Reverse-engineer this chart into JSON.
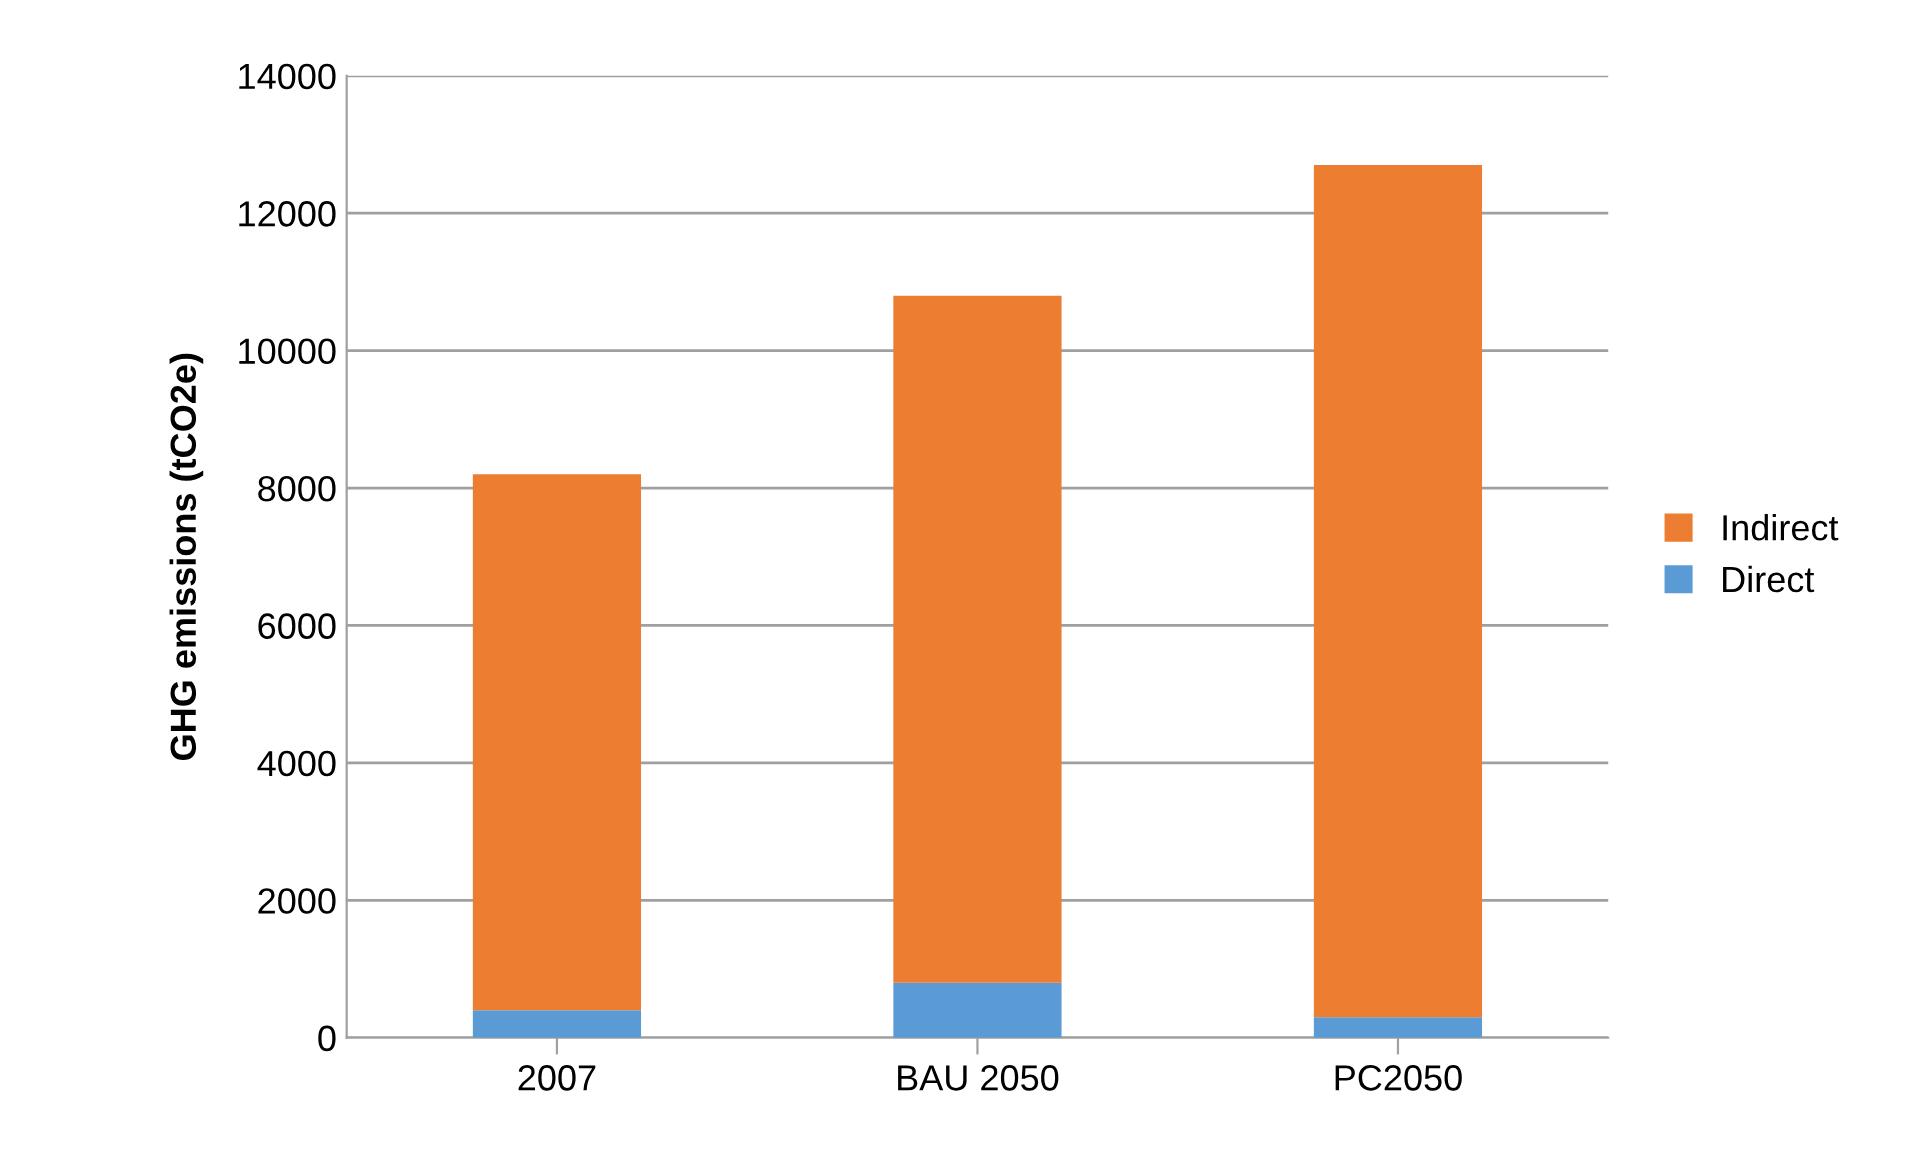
{
  "chart_data": {
    "type": "bar",
    "stacked": true,
    "ylabel": "GHG emissions (tCO2e)",
    "categories": [
      "2007",
      "BAU 2050",
      "PC2050"
    ],
    "series": [
      {
        "name": "Direct",
        "color": "#5b9bd5",
        "values": [
          400,
          800,
          300
        ]
      },
      {
        "name": "Indirect",
        "color": "#ed7d31",
        "values": [
          7800,
          10000,
          12400
        ]
      }
    ],
    "ylim": [
      0,
      14000
    ],
    "yticks": [
      0,
      2000,
      4000,
      6000,
      8000,
      10000,
      12000,
      14000
    ],
    "grid": "y",
    "legend": "right"
  }
}
